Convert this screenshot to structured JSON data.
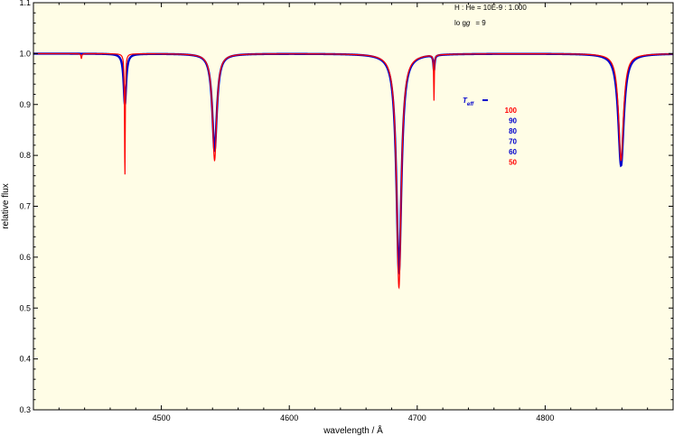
{
  "chart_data": {
    "type": "line",
    "xlabel": "wavelength / Å",
    "ylabel": "relative flux",
    "xlim": [
      4400,
      4900
    ],
    "ylim": [
      0.3,
      1.1
    ],
    "x_ticks": [
      4500,
      4600,
      4700,
      4800
    ],
    "y_ticks": [
      0.3,
      0.4,
      0.5,
      0.6,
      0.7,
      0.8,
      0.9,
      1.0,
      1.1
    ],
    "grid": false,
    "background": "#fffde6",
    "annotations": {
      "composition": "H : He = 10E-9 : 1.000",
      "logg_label": "log g",
      "logg_value": "= 9"
    },
    "legend": {
      "label": "T",
      "label_sub": "eff",
      "placement": "right",
      "entries": [
        {
          "label": "100",
          "color": "#ff0000"
        },
        {
          "label": "90",
          "color": "#0000cc"
        },
        {
          "label": "80",
          "color": "#0000cc"
        },
        {
          "label": "70",
          "color": "#0000cc"
        },
        {
          "label": "60",
          "color": "#0000cc"
        },
        {
          "label": "50",
          "color": "#ff0000"
        }
      ]
    },
    "series": [
      {
        "color": "#0000cc",
        "lines": [
          {
            "center": 4437.5,
            "depth": 0.0,
            "width": 0.5
          },
          {
            "center": 4471.5,
            "depth": 0.1,
            "width": 1.2
          },
          {
            "center": 4541.6,
            "depth": 0.19,
            "width": 2.2
          },
          {
            "center": 4685.7,
            "depth": 0.43,
            "width": 2.4
          },
          {
            "center": 4713.1,
            "depth": 0.03,
            "width": 0.6
          },
          {
            "center": 4859.3,
            "depth": 0.22,
            "width": 2.6
          }
        ]
      },
      {
        "color": "#ff0000",
        "lines": [
          {
            "center": 4437.5,
            "depth": 0.01,
            "width": 0.4
          },
          {
            "center": 4471.5,
            "depth": 0.24,
            "width": 0.35
          },
          {
            "center": 4541.6,
            "depth": 0.21,
            "width": 2.0
          },
          {
            "center": 4685.7,
            "depth": 0.46,
            "width": 2.2
          },
          {
            "center": 4713.1,
            "depth": 0.09,
            "width": 0.3
          },
          {
            "center": 4859.3,
            "depth": 0.21,
            "width": 2.3
          }
        ]
      }
    ]
  }
}
